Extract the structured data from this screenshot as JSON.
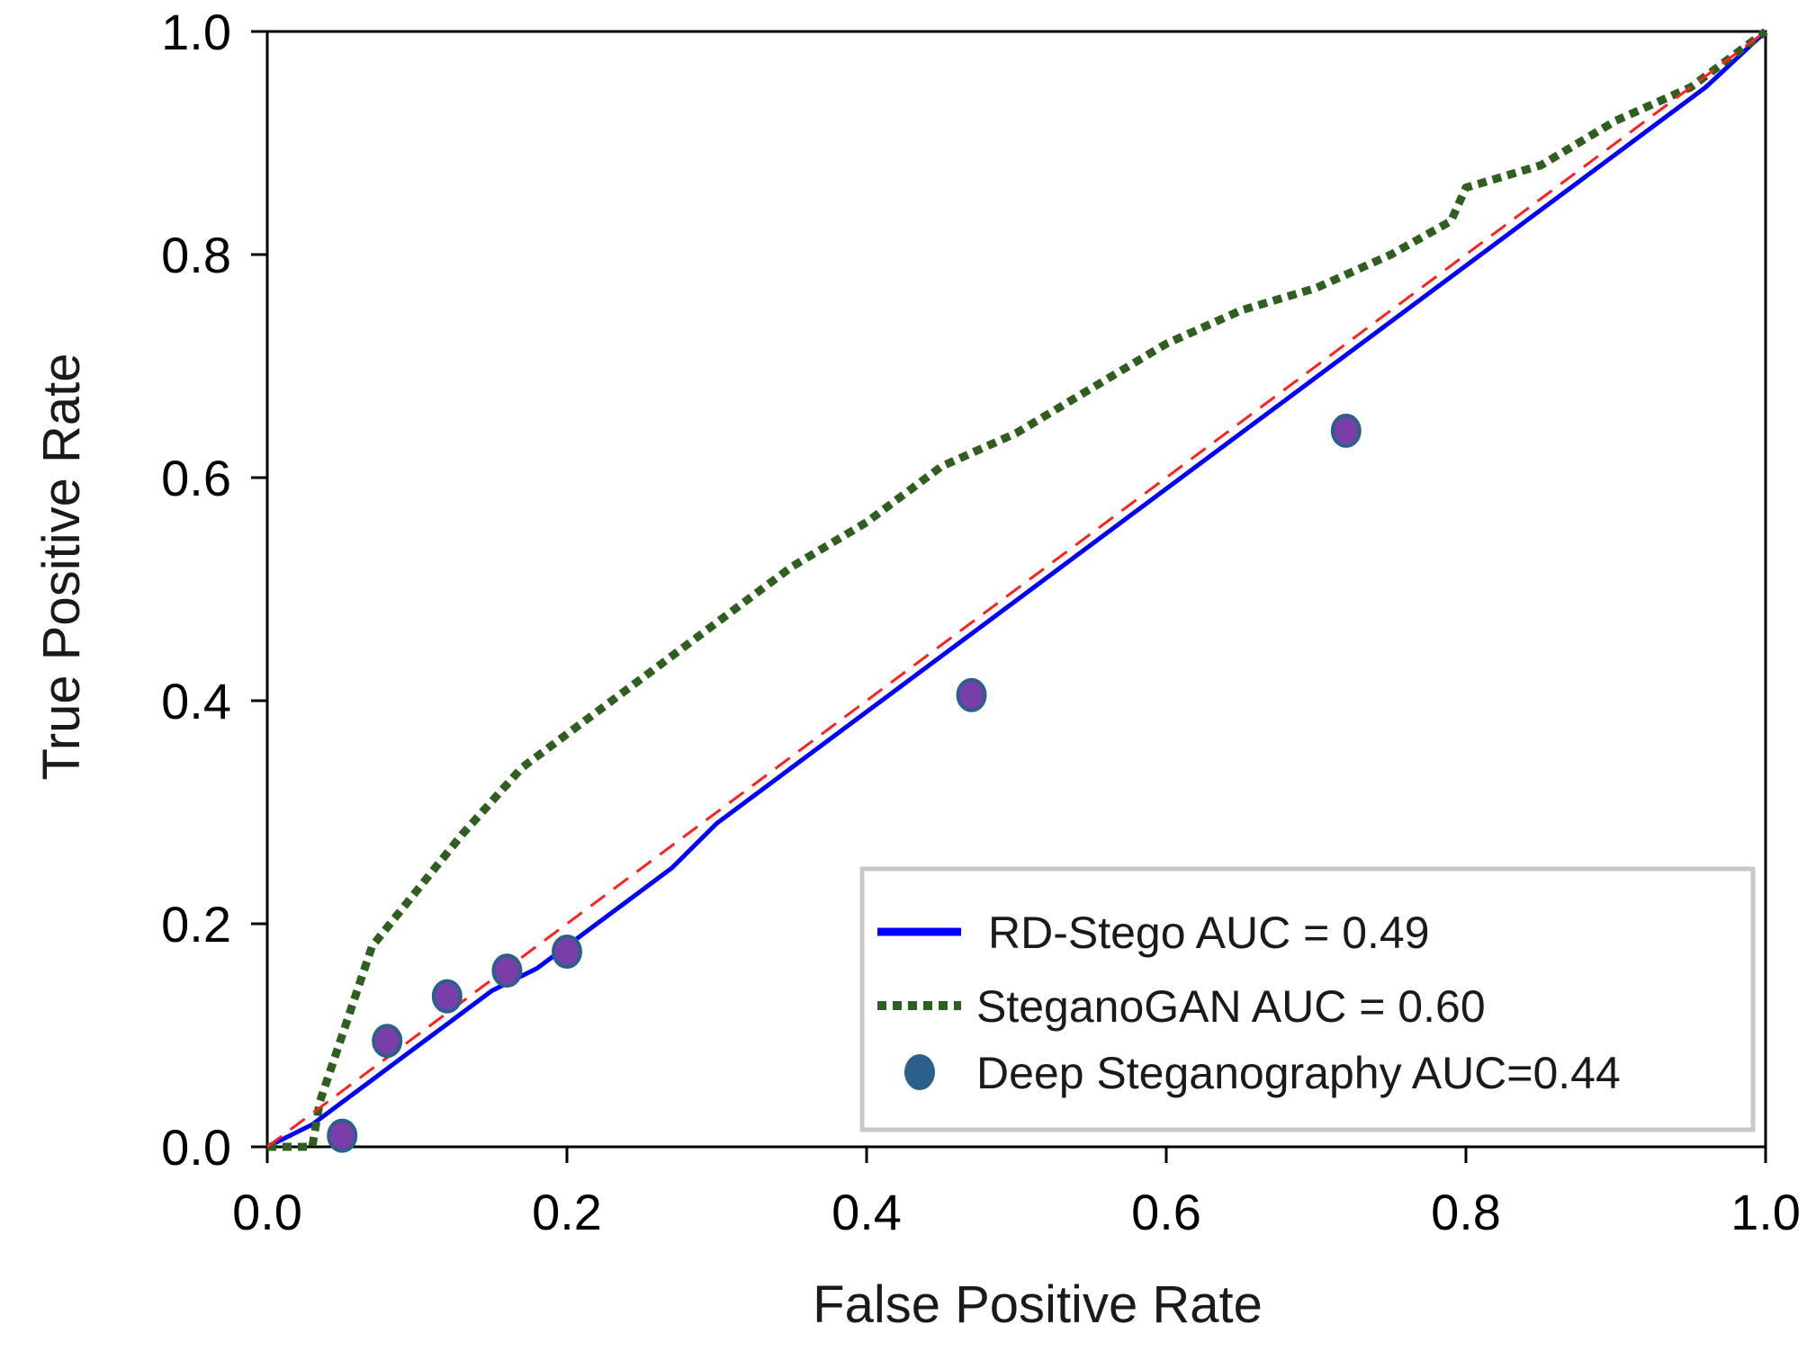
{
  "chart_data": {
    "type": "line",
    "title": "",
    "xlabel": "False Positive Rate",
    "ylabel": "True Positive Rate",
    "xlim": [
      0,
      1
    ],
    "ylim": [
      0,
      1
    ],
    "grid": false,
    "legend_position": "bottom-right",
    "x_ticks": [
      {
        "value": 0.0,
        "label": "0.0"
      },
      {
        "value": 0.2,
        "label": "0.2"
      },
      {
        "value": 0.4,
        "label": "0.4"
      },
      {
        "value": 0.6,
        "label": "0.6"
      },
      {
        "value": 0.8,
        "label": "0.8"
      },
      {
        "value": 1.0,
        "label": "1.0"
      }
    ],
    "y_ticks": [
      {
        "value": 0.0,
        "label": "0.0"
      },
      {
        "value": 0.2,
        "label": "0.2"
      },
      {
        "value": 0.4,
        "label": "0.4"
      },
      {
        "value": 0.6,
        "label": "0.6"
      },
      {
        "value": 0.8,
        "label": "0.8"
      },
      {
        "value": 1.0,
        "label": "1.0"
      }
    ],
    "series": [
      {
        "name": "RD-Stego AUC = 0.49",
        "style": "solid",
        "color": "#0000ff",
        "x": [
          0.0,
          0.03,
          0.05,
          0.07,
          0.09,
          0.12,
          0.15,
          0.18,
          0.21,
          0.24,
          0.27,
          0.3,
          0.33,
          0.36,
          0.4,
          0.44,
          0.48,
          0.52,
          0.56,
          0.6,
          0.64,
          0.68,
          0.72,
          0.76,
          0.8,
          0.84,
          0.88,
          0.92,
          0.96,
          1.0
        ],
        "y": [
          0.0,
          0.02,
          0.04,
          0.06,
          0.08,
          0.11,
          0.14,
          0.16,
          0.19,
          0.22,
          0.25,
          0.29,
          0.32,
          0.35,
          0.39,
          0.43,
          0.47,
          0.51,
          0.55,
          0.59,
          0.63,
          0.67,
          0.71,
          0.75,
          0.79,
          0.83,
          0.87,
          0.91,
          0.95,
          1.0
        ]
      },
      {
        "name": "SteganoGAN AUC = 0.60",
        "style": "dotted",
        "color": "#2f5f1f",
        "x": [
          0.0,
          0.03,
          0.035,
          0.05,
          0.07,
          0.1,
          0.13,
          0.17,
          0.2,
          0.25,
          0.3,
          0.35,
          0.4,
          0.45,
          0.5,
          0.55,
          0.6,
          0.65,
          0.7,
          0.75,
          0.79,
          0.8,
          0.85,
          0.9,
          0.95,
          1.0
        ],
        "y": [
          0.0,
          0.0,
          0.04,
          0.1,
          0.18,
          0.23,
          0.28,
          0.34,
          0.37,
          0.42,
          0.47,
          0.52,
          0.56,
          0.61,
          0.64,
          0.68,
          0.72,
          0.75,
          0.77,
          0.8,
          0.83,
          0.86,
          0.88,
          0.92,
          0.95,
          1.0
        ]
      },
      {
        "name": "Deep Steganography AUC=0.44",
        "style": "markers",
        "color": "#7a3ea8",
        "edge_color": "#2b5f8c",
        "x": [
          0.05,
          0.08,
          0.12,
          0.16,
          0.2,
          0.47,
          0.72
        ],
        "y": [
          0.01,
          0.095,
          0.135,
          0.158,
          0.175,
          0.405,
          0.642
        ]
      },
      {
        "name": "",
        "style": "dashed",
        "color": "#ff2020",
        "x": [
          0.0,
          1.0
        ],
        "y": [
          0.0,
          1.0
        ]
      }
    ]
  }
}
